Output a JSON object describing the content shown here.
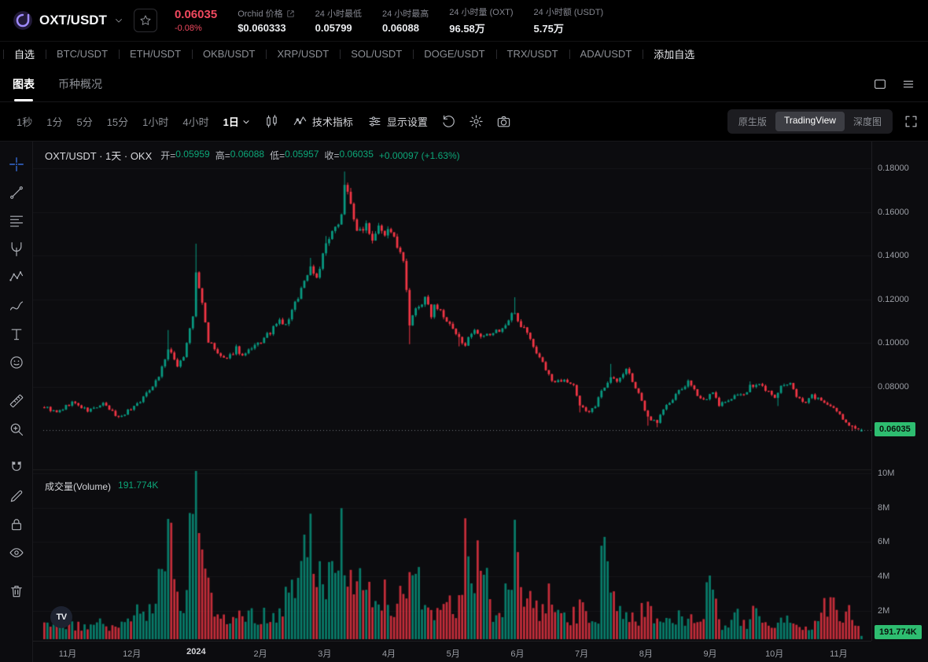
{
  "colors": {
    "up": "#089981",
    "down": "#f23645",
    "price_red": "#f0495f",
    "value_green": "#0ca678",
    "badge_bg": "#2ebd70",
    "badge_text": "#0a130d",
    "accent_blue": "#3d7eff"
  },
  "header": {
    "pair": "OXT/USDT",
    "price": "0.06035",
    "change": "-0.08%",
    "stats": [
      {
        "label": "Orchid 价格",
        "value": "$0.060333"
      },
      {
        "label": "24 小时最低",
        "value": "0.05799"
      },
      {
        "label": "24 小时最高",
        "value": "0.06088"
      },
      {
        "label": "24 小时量 (OXT)",
        "value": "96.58万"
      },
      {
        "label": "24 小时额 (USDT)",
        "value": "5.75万"
      }
    ]
  },
  "pairs_row": {
    "items": [
      {
        "label": "自选",
        "cls": "active"
      },
      {
        "label": "BTC/USDT"
      },
      {
        "label": "ETH/USDT"
      },
      {
        "label": "OKB/USDT"
      },
      {
        "label": "XRP/USDT"
      },
      {
        "label": "SOL/USDT"
      },
      {
        "label": "DOGE/USDT"
      },
      {
        "label": "TRX/USDT"
      },
      {
        "label": "ADA/USDT"
      },
      {
        "label": "添加自选",
        "cls": "add"
      }
    ]
  },
  "view_tabs": {
    "chart": "图表",
    "overview": "币种概况"
  },
  "toolbar": {
    "intervals": [
      {
        "label": "1秒"
      },
      {
        "label": "1分"
      },
      {
        "label": "5分"
      },
      {
        "label": "15分"
      },
      {
        "label": "1小时"
      },
      {
        "label": "4小时"
      },
      {
        "label": "1日",
        "cls": "active"
      }
    ],
    "indicators_label": "技术指标",
    "display_label": "显示设置",
    "right_tabs": [
      {
        "label": "原生版"
      },
      {
        "label": "TradingView",
        "cls": "active"
      },
      {
        "label": "深度图"
      }
    ]
  },
  "tools": [
    {
      "name": "crosshair-icon",
      "icon": "#i-crosshair",
      "cls": "blue"
    },
    {
      "name": "trendline-icon",
      "icon": "#i-trendline"
    },
    {
      "name": "fib-retracement-icon",
      "icon": "#i-fib"
    },
    {
      "name": "pitchfork-icon",
      "icon": "#i-pitchfork"
    },
    {
      "name": "pattern-icon",
      "icon": "#i-pattern"
    },
    {
      "name": "brush-icon",
      "icon": "#i-brush"
    },
    {
      "name": "text-icon",
      "icon": "#i-text"
    },
    {
      "name": "emoji-icon",
      "icon": "#i-emoji",
      "cls": "gap"
    },
    {
      "name": "measure-icon",
      "icon": "#i-ruler"
    },
    {
      "name": "zoom-in-icon",
      "icon": "#i-zoom",
      "cls": "gap"
    },
    {
      "name": "magnet-icon",
      "icon": "#i-magnet"
    },
    {
      "name": "edit-icon",
      "icon": "#i-pencil"
    },
    {
      "name": "lock-icon",
      "icon": "#i-lock"
    },
    {
      "name": "eye-icon",
      "icon": "#i-eye",
      "cls": "gap"
    },
    {
      "name": "trash-icon",
      "icon": "#i-trash"
    }
  ],
  "legend": {
    "symbol": "OXT/USDT · 1天 · OKX",
    "open_label": "开=",
    "open": "0.05959",
    "high_label": "高=",
    "high": "0.06088",
    "low_label": "低=",
    "low": "0.05957",
    "close_label": "收=",
    "close": "0.06035",
    "change": "+0.00097 (+1.63%)"
  },
  "volume_legend": {
    "label": "成交量(Volume)",
    "value": "191.774K"
  },
  "price_axis": {
    "ticks": [
      "0.18000",
      "0.16000",
      "0.14000",
      "0.12000",
      "0.10000",
      "0.08000"
    ],
    "last_price": "0.06035"
  },
  "volume_axis": {
    "ticks": [
      "10M",
      "8M",
      "6M",
      "4M",
      "2M"
    ],
    "last_volume": "191.774K"
  },
  "time_axis": {
    "ticks": [
      {
        "label": "11月"
      },
      {
        "label": "12月"
      },
      {
        "label": "2024",
        "cls": "year"
      },
      {
        "label": "2月"
      },
      {
        "label": "3月"
      },
      {
        "label": "4月"
      },
      {
        "label": "5月"
      },
      {
        "label": "6月"
      },
      {
        "label": "7月"
      },
      {
        "label": "8月"
      },
      {
        "label": "9月"
      },
      {
        "label": "10月"
      },
      {
        "label": "11月"
      }
    ]
  },
  "chart_data": {
    "type": "candlestick",
    "symbol": "OXT/USDT",
    "interval": "1日",
    "exchange": "OKX",
    "candle_count": 265,
    "price_ylim": [
      0.045,
      0.192
    ],
    "price_tick_step": 0.02,
    "volume_ylim_M": [
      0,
      10
    ],
    "last_candle": {
      "open": 0.05959,
      "high": 0.06088,
      "low": 0.05957,
      "close": 0.06035
    },
    "last_volume_M": 0.191774,
    "close_anchors": [
      [
        0,
        0.071
      ],
      [
        4,
        0.068
      ],
      [
        9,
        0.073
      ],
      [
        14,
        0.069
      ],
      [
        19,
        0.072
      ],
      [
        24,
        0.066
      ],
      [
        28,
        0.07
      ],
      [
        32,
        0.075
      ],
      [
        37,
        0.085
      ],
      [
        40,
        0.097
      ],
      [
        43,
        0.09
      ],
      [
        45,
        0.094
      ],
      [
        48,
        0.112
      ],
      [
        49,
        0.132
      ],
      [
        51,
        0.118
      ],
      [
        53,
        0.101
      ],
      [
        56,
        0.095
      ],
      [
        59,
        0.092
      ],
      [
        62,
        0.098
      ],
      [
        64,
        0.094
      ],
      [
        67,
        0.097
      ],
      [
        71,
        0.102
      ],
      [
        73,
        0.105
      ],
      [
        76,
        0.11
      ],
      [
        78,
        0.108
      ],
      [
        81,
        0.118
      ],
      [
        83,
        0.125
      ],
      [
        86,
        0.135
      ],
      [
        88,
        0.13
      ],
      [
        91,
        0.145
      ],
      [
        94,
        0.152
      ],
      [
        96,
        0.16
      ],
      [
        97,
        0.172
      ],
      [
        99,
        0.165
      ],
      [
        101,
        0.15
      ],
      [
        104,
        0.155
      ],
      [
        106,
        0.148
      ],
      [
        108,
        0.155
      ],
      [
        110,
        0.15
      ],
      [
        112,
        0.152
      ],
      [
        114,
        0.143
      ],
      [
        116,
        0.138
      ],
      [
        118,
        0.108
      ],
      [
        120,
        0.115
      ],
      [
        123,
        0.12
      ],
      [
        125,
        0.113
      ],
      [
        126,
        0.118
      ],
      [
        129,
        0.112
      ],
      [
        131,
        0.108
      ],
      [
        134,
        0.102
      ],
      [
        136,
        0.1
      ],
      [
        139,
        0.105
      ],
      [
        141,
        0.102
      ],
      [
        144,
        0.104
      ],
      [
        147,
        0.106
      ],
      [
        149,
        0.108
      ],
      [
        152,
        0.115
      ],
      [
        153,
        0.11
      ],
      [
        156,
        0.105
      ],
      [
        158,
        0.098
      ],
      [
        160,
        0.094
      ],
      [
        163,
        0.085
      ],
      [
        165,
        0.082
      ],
      [
        168,
        0.084
      ],
      [
        171,
        0.08
      ],
      [
        173,
        0.072
      ],
      [
        176,
        0.068
      ],
      [
        178,
        0.071
      ],
      [
        180,
        0.078
      ],
      [
        183,
        0.085
      ],
      [
        185,
        0.082
      ],
      [
        188,
        0.088
      ],
      [
        190,
        0.083
      ],
      [
        193,
        0.073
      ],
      [
        195,
        0.066
      ],
      [
        198,
        0.064
      ],
      [
        200,
        0.07
      ],
      [
        203,
        0.074
      ],
      [
        205,
        0.078
      ],
      [
        208,
        0.082
      ],
      [
        210,
        0.078
      ],
      [
        213,
        0.074
      ],
      [
        216,
        0.077
      ],
      [
        218,
        0.072
      ],
      [
        221,
        0.073
      ],
      [
        223,
        0.077
      ],
      [
        226,
        0.076
      ],
      [
        228,
        0.08
      ],
      [
        231,
        0.081
      ],
      [
        233,
        0.079
      ],
      [
        236,
        0.075
      ],
      [
        238,
        0.08
      ],
      [
        241,
        0.081
      ],
      [
        243,
        0.076
      ],
      [
        246,
        0.073
      ],
      [
        248,
        0.076
      ],
      [
        251,
        0.074
      ],
      [
        253,
        0.071
      ],
      [
        256,
        0.069
      ],
      [
        258,
        0.065
      ],
      [
        261,
        0.062
      ],
      [
        263,
        0.0605
      ],
      [
        264,
        0.06035
      ]
    ],
    "high_wicks": [
      [
        40,
        0.106
      ],
      [
        49,
        0.1455
      ],
      [
        86,
        0.139
      ],
      [
        91,
        0.149
      ],
      [
        97,
        0.1785
      ],
      [
        99,
        0.171
      ],
      [
        152,
        0.121
      ],
      [
        183,
        0.0905
      ],
      [
        228,
        0.0825
      ]
    ],
    "low_wicks": [
      [
        118,
        0.0995
      ],
      [
        134,
        0.0985
      ],
      [
        173,
        0.0683
      ],
      [
        195,
        0.0622
      ],
      [
        198,
        0.0615
      ],
      [
        237,
        0.0712
      ],
      [
        261,
        0.0598
      ],
      [
        264,
        0.05957
      ]
    ],
    "volume_anchors_M": [
      [
        0,
        1.2
      ],
      [
        8,
        0.7
      ],
      [
        16,
        0.9
      ],
      [
        24,
        0.8
      ],
      [
        30,
        1.4
      ],
      [
        36,
        2.2
      ],
      [
        40,
        6.8
      ],
      [
        42,
        2.6
      ],
      [
        45,
        1.8
      ],
      [
        49,
        8.6
      ],
      [
        51,
        3.8
      ],
      [
        55,
        1.8
      ],
      [
        60,
        1.1
      ],
      [
        65,
        1.4
      ],
      [
        70,
        1.2
      ],
      [
        75,
        1.7
      ],
      [
        80,
        2.4
      ],
      [
        83,
        4.4
      ],
      [
        86,
        6.3
      ],
      [
        88,
        3.2
      ],
      [
        91,
        3.9
      ],
      [
        94,
        2.8
      ],
      [
        96,
        5.4
      ],
      [
        99,
        4.4
      ],
      [
        101,
        3.4
      ],
      [
        104,
        2.4
      ],
      [
        108,
        2.7
      ],
      [
        112,
        2.1
      ],
      [
        116,
        2.9
      ],
      [
        118,
        5.0
      ],
      [
        121,
        3.1
      ],
      [
        125,
        2.1
      ],
      [
        129,
        1.7
      ],
      [
        134,
        1.9
      ],
      [
        137,
        7.4
      ],
      [
        139,
        2.8
      ],
      [
        141,
        5.9
      ],
      [
        144,
        1.9
      ],
      [
        147,
        1.4
      ],
      [
        149,
        2.4
      ],
      [
        152,
        5.0
      ],
      [
        154,
        2.9
      ],
      [
        158,
        2.1
      ],
      [
        161,
        1.7
      ],
      [
        163,
        2.7
      ],
      [
        166,
        1.4
      ],
      [
        170,
        1.1
      ],
      [
        173,
        1.9
      ],
      [
        176,
        1.4
      ],
      [
        179,
        1.1
      ],
      [
        181,
        7.8
      ],
      [
        183,
        3.8
      ],
      [
        186,
        1.9
      ],
      [
        189,
        1.4
      ],
      [
        191,
        1.1
      ],
      [
        194,
        2.1
      ],
      [
        196,
        1.4
      ],
      [
        199,
        0.9
      ],
      [
        203,
        1.1
      ],
      [
        206,
        1.4
      ],
      [
        209,
        1.1
      ],
      [
        212,
        0.8
      ],
      [
        215,
        3.4
      ],
      [
        218,
        1.1
      ],
      [
        221,
        0.7
      ],
      [
        224,
        1.4
      ],
      [
        227,
        0.9
      ],
      [
        230,
        1.7
      ],
      [
        233,
        1.1
      ],
      [
        236,
        0.8
      ],
      [
        239,
        1.2
      ],
      [
        242,
        0.9
      ],
      [
        245,
        0.7
      ],
      [
        248,
        1.0
      ],
      [
        251,
        1.4
      ],
      [
        254,
        2.3
      ],
      [
        257,
        1.1
      ],
      [
        260,
        1.7
      ],
      [
        262,
        0.9
      ],
      [
        264,
        0.19
      ]
    ]
  }
}
